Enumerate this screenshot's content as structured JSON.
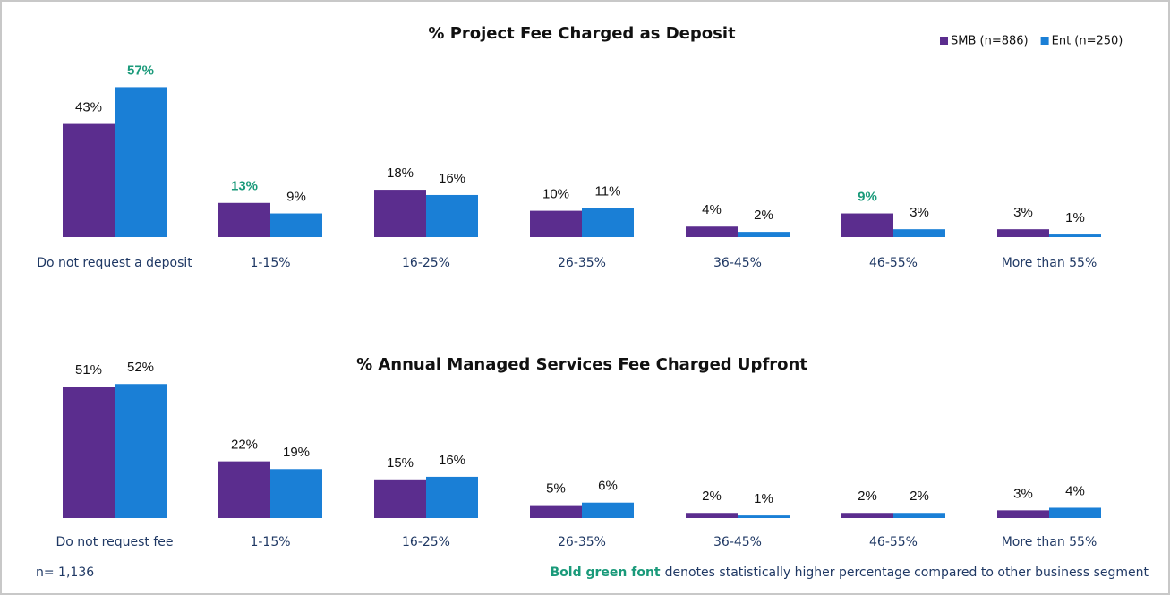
{
  "chart_data": [
    {
      "type": "bar",
      "title": "% Project Fee Charged as Deposit",
      "categories": [
        "Do not request a deposit",
        "1-15%",
        "16-25%",
        "26-35%",
        "36-45%",
        "46-55%",
        "More than 55%"
      ],
      "highlight_color": "#1a9a7a",
      "series": [
        {
          "name": "SMB (n=886)",
          "color": "#5b2d8e",
          "values": [
            43,
            13,
            18,
            10,
            4,
            9,
            3
          ],
          "value_labels": [
            "43%",
            "13%",
            "18%",
            "10%",
            "4%",
            "9%",
            "3%"
          ],
          "highlighted": [
            false,
            true,
            false,
            false,
            false,
            true,
            false
          ]
        },
        {
          "name": "Ent (n=250)",
          "color": "#1a7fd6",
          "values": [
            57,
            9,
            16,
            11,
            2,
            3,
            1
          ],
          "value_labels": [
            "57%",
            "9%",
            "16%",
            "11%",
            "2%",
            "3%",
            "1%"
          ],
          "highlighted": [
            true,
            false,
            false,
            false,
            false,
            false,
            false
          ]
        }
      ],
      "legend": "top-right"
    },
    {
      "type": "bar",
      "title": "% Annual Managed Services Fee Charged Upfront",
      "categories": [
        "Do not request fee",
        "1-15%",
        "16-25%",
        "26-35%",
        "36-45%",
        "46-55%",
        "More than 55%"
      ],
      "highlight_color": "#1a9a7a",
      "series": [
        {
          "name": "SMB (n=886)",
          "color": "#5b2d8e",
          "values": [
            51,
            22,
            15,
            5,
            2,
            2,
            3
          ],
          "value_labels": [
            "51%",
            "22%",
            "15%",
            "5%",
            "2%",
            "2%",
            "3%"
          ],
          "highlighted": [
            false,
            false,
            false,
            false,
            false,
            false,
            false
          ]
        },
        {
          "name": "Ent (n=250)",
          "color": "#1a7fd6",
          "values": [
            52,
            19,
            16,
            6,
            1,
            2,
            4
          ],
          "value_labels": [
            "52%",
            "19%",
            "16%",
            "6%",
            "1%",
            "2%",
            "4%"
          ],
          "highlighted": [
            false,
            false,
            false,
            false,
            false,
            false,
            false
          ]
        }
      ]
    }
  ],
  "notes": {
    "sample": "n= 1,136",
    "footnote_emphasis": "Bold green font",
    "footnote": "denotes statistically higher percentage compared to other business segment"
  }
}
